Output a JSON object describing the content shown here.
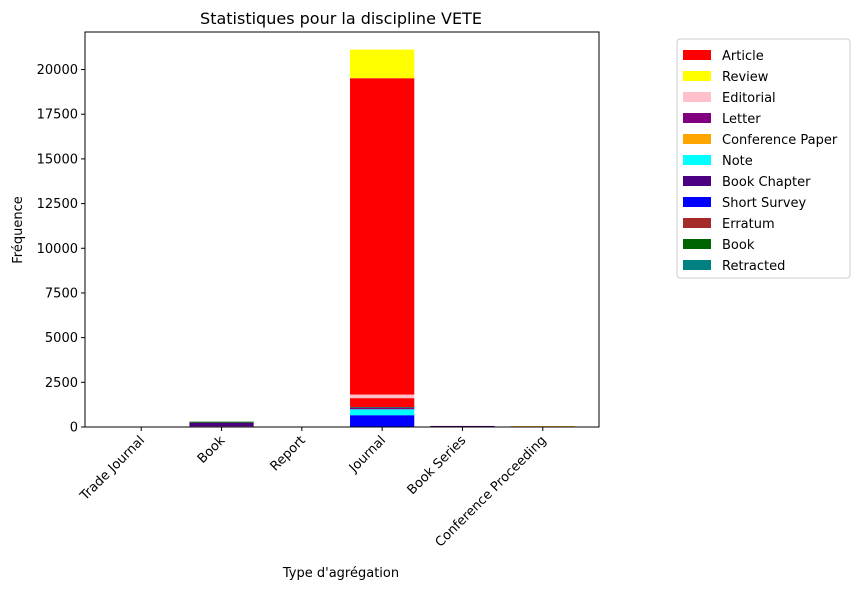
{
  "chart_data": {
    "type": "bar",
    "stacked": true,
    "title": "Statistiques pour la discipline VETE",
    "xlabel": "Type d'agrégation",
    "ylabel": "Fréquence",
    "ylim": [
      0,
      22100
    ],
    "yticks": [
      0,
      2500,
      5000,
      7500,
      10000,
      12500,
      15000,
      17500,
      20000
    ],
    "categories": [
      "Trade Journal",
      "Book",
      "Report",
      "Journal",
      "Book Series",
      "Conference Proceeding"
    ],
    "legend_position": "outside-right-top",
    "grid": false,
    "series": [
      {
        "name": "Short Survey",
        "color": "#0000ff",
        "values": [
          0,
          0,
          0,
          660,
          0,
          0
        ]
      },
      {
        "name": "Note",
        "color": "#00ffff",
        "values": [
          0,
          0,
          0,
          330,
          0,
          0
        ]
      },
      {
        "name": "Letter",
        "color": "#800080",
        "values": [
          0,
          40,
          0,
          100,
          20,
          0
        ]
      },
      {
        "name": "Book Chapter",
        "color": "#4b0082",
        "values": [
          0,
          200,
          0,
          0,
          40,
          0
        ]
      },
      {
        "name": "Book",
        "color": "#006400",
        "values": [
          0,
          60,
          0,
          0,
          0,
          0
        ]
      },
      {
        "name": "Conference Paper",
        "color": "#ffa500",
        "values": [
          0,
          0,
          0,
          0,
          0,
          50
        ]
      },
      {
        "name": "Erratum",
        "color": "#a52a2a",
        "values": [
          0,
          0,
          0,
          20,
          0,
          0
        ]
      },
      {
        "name": "Retracted",
        "color": "#008080",
        "values": [
          0,
          0,
          0,
          5,
          0,
          0
        ]
      },
      {
        "name": "Article",
        "color": "#ff0000",
        "values": [
          0,
          0,
          0,
          500,
          0,
          0
        ]
      },
      {
        "name": "Editorial",
        "color": "#ffc0cb",
        "values": [
          0,
          0,
          0,
          200,
          0,
          0
        ]
      },
      {
        "name": "Article",
        "color": "#ff0000",
        "values": [
          0,
          0,
          0,
          17700,
          0,
          0
        ]
      },
      {
        "name": "Review",
        "color": "#ffff00",
        "values": [
          0,
          0,
          0,
          1600,
          0,
          0
        ]
      }
    ],
    "legend": [
      {
        "label": "Article",
        "color": "#ff0000"
      },
      {
        "label": "Review",
        "color": "#ffff00"
      },
      {
        "label": "Editorial",
        "color": "#ffc0cb"
      },
      {
        "label": "Letter",
        "color": "#800080"
      },
      {
        "label": "Conference Paper",
        "color": "#ffa500"
      },
      {
        "label": "Note",
        "color": "#00ffff"
      },
      {
        "label": "Book Chapter",
        "color": "#4b0082"
      },
      {
        "label": "Short Survey",
        "color": "#0000ff"
      },
      {
        "label": "Erratum",
        "color": "#a52a2a"
      },
      {
        "label": "Book",
        "color": "#006400"
      },
      {
        "label": "Retracted",
        "color": "#008080"
      }
    ]
  }
}
